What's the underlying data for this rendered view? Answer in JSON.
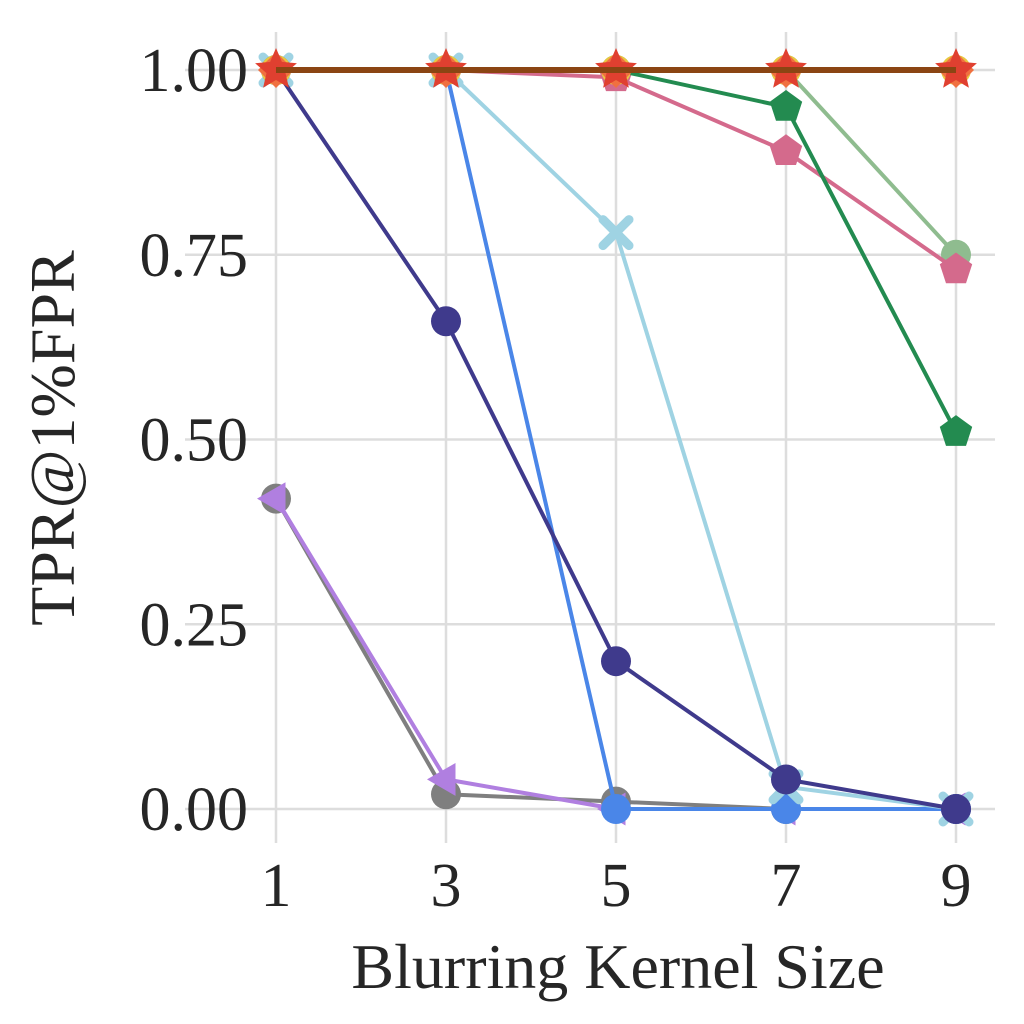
{
  "chart_data": {
    "type": "line",
    "title": "",
    "xlabel": "Blurring Kernel Size",
    "ylabel": "TPR@1%FPR",
    "x": [
      1,
      3,
      5,
      7,
      9
    ],
    "x_tick_labels": [
      "1",
      "3",
      "5",
      "7",
      "9"
    ],
    "y_tick_labels": [
      "0.00",
      "0.25",
      "0.50",
      "0.75",
      "1.00"
    ],
    "xlim": [
      0,
      10
    ],
    "ylim": [
      -0.05,
      1.05
    ],
    "grid": true,
    "legend": "none",
    "series": [
      {
        "color": "#7f7f7f",
        "marker": "circle",
        "values": [
          0.42,
          0.02,
          0.01,
          0.0,
          0.0
        ]
      },
      {
        "color": "#b07fe0",
        "marker": "triangle-left",
        "values": [
          0.42,
          0.04,
          0.0,
          0.0,
          0.0
        ]
      },
      {
        "color": "#4a86e8",
        "marker": "circle",
        "values": [
          1.0,
          1.0,
          0.0,
          0.0,
          0.0
        ]
      },
      {
        "color": "#9fd3e3",
        "marker": "x",
        "values": [
          1.0,
          1.0,
          0.78,
          0.03,
          0.0
        ]
      },
      {
        "color": "#3f3a8c",
        "marker": "circle",
        "values": [
          1.0,
          0.66,
          0.2,
          0.04,
          0.0
        ]
      },
      {
        "color": "#8fbc8f",
        "marker": "circle",
        "values": [
          1.0,
          1.0,
          1.0,
          1.0,
          0.75
        ]
      },
      {
        "color": "#d46a8c",
        "marker": "pentagon",
        "values": [
          1.0,
          1.0,
          0.99,
          0.89,
          0.73
        ]
      },
      {
        "color": "#238b50",
        "marker": "pentagon",
        "values": [
          1.0,
          1.0,
          1.0,
          0.95,
          0.51
        ]
      },
      {
        "color": "#e8c840",
        "marker": "circle",
        "values": [
          1.0,
          1.0,
          1.0,
          1.0,
          1.0
        ]
      },
      {
        "color": "#f07040",
        "marker": "diamond",
        "values": [
          1.0,
          1.0,
          1.0,
          1.0,
          1.0
        ]
      },
      {
        "color": "#e04030",
        "marker": "star",
        "values": [
          1.0,
          1.0,
          1.0,
          1.0,
          1.0
        ]
      },
      {
        "color": "#8b4513",
        "marker": "none",
        "values": [
          1.0,
          1.0,
          1.0,
          1.0,
          1.0
        ]
      }
    ]
  }
}
